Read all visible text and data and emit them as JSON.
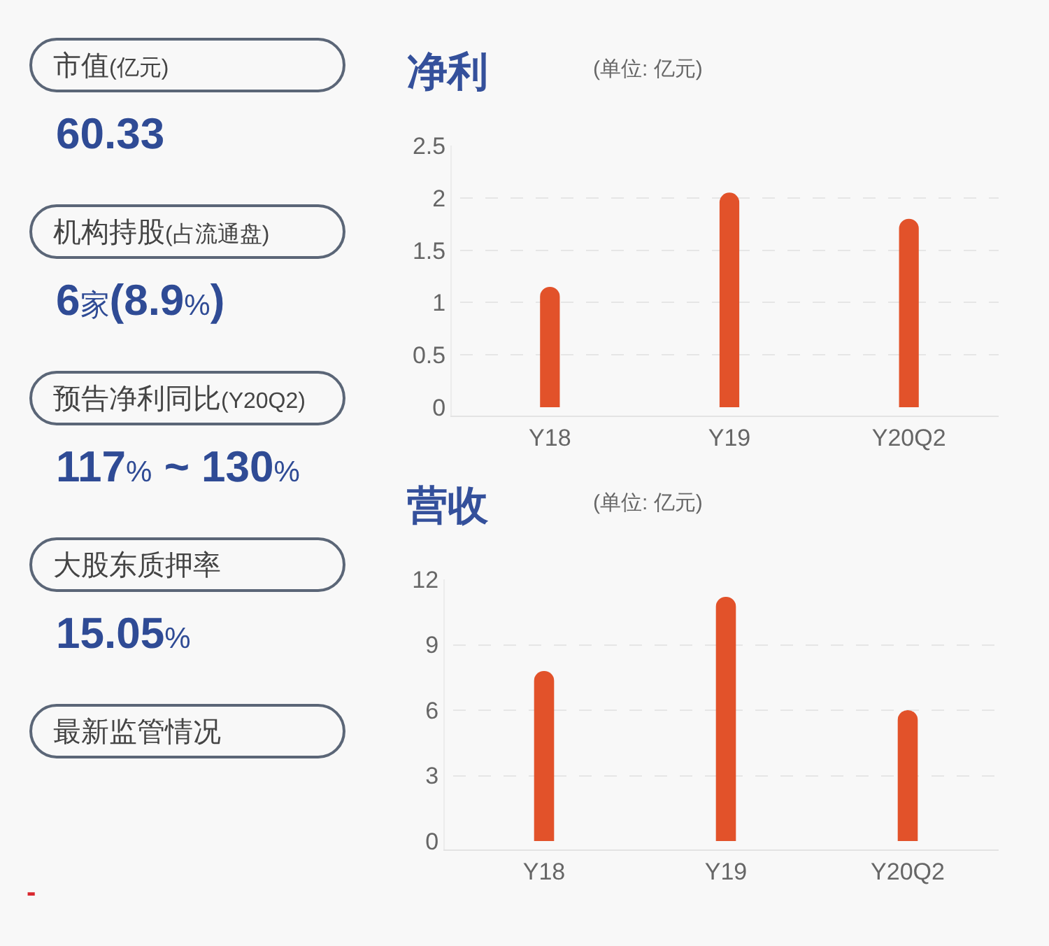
{
  "chart_data": [
    {
      "type": "other",
      "annotations": [
        "市值(亿元)",
        "60.33",
        "机构持股(占流通盘)",
        "6家(8.9%)",
        "预告净利同比(Y20Q2)",
        "117% ~ 130%",
        "大股东质押率",
        "15.05%",
        "最新监管情况",
        "-"
      ]
    },
    {
      "type": "bar",
      "title": "净利",
      "subtitle": "(单位: 亿元)",
      "categories": [
        "Y18",
        "Y19",
        "Y20Q2"
      ],
      "values": [
        1.15,
        2.05,
        1.8
      ],
      "color": "#e2522a",
      "ylim": [
        0,
        2.5
      ],
      "yticks": [
        0,
        0.5,
        1,
        1.5,
        2,
        2.5
      ],
      "grid": "y"
    },
    {
      "type": "bar",
      "title": "营收",
      "subtitle": "(单位: 亿元)",
      "categories": [
        "Y18",
        "Y19",
        "Y20Q2"
      ],
      "values": [
        7.8,
        11.2,
        6
      ],
      "color": "#e2522a",
      "ylim": [
        0,
        12
      ],
      "yticks": [
        0,
        3,
        6,
        9,
        12
      ],
      "grid": "y"
    }
  ]
}
